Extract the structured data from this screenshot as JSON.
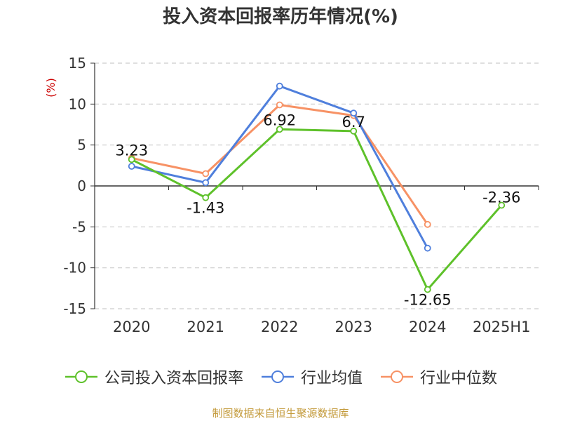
{
  "chart_data": {
    "type": "line",
    "title": "投入资本回报率历年情况(%)",
    "ylabel": "(%)",
    "xlabel": "",
    "categories": [
      "2020",
      "2021",
      "2022",
      "2023",
      "2024",
      "2025H1"
    ],
    "ylim": [
      -15,
      15
    ],
    "yticks": [
      15,
      10,
      5,
      0,
      -5,
      -10,
      -15
    ],
    "grid": true,
    "legend_position": "bottom",
    "series": [
      {
        "name": "公司投入资本回报率",
        "color": "#5ec12a",
        "values": [
          3.23,
          -1.43,
          6.92,
          6.7,
          -12.65,
          -2.36
        ],
        "labels": [
          "3.23",
          "-1.43",
          "6.92",
          "6.7",
          "-12.65",
          "-2.36"
        ]
      },
      {
        "name": "行业均值",
        "color": "#4f7fdc",
        "values": [
          2.4,
          0.4,
          12.2,
          8.9,
          -7.6,
          null
        ]
      },
      {
        "name": "行业中位数",
        "color": "#f79265",
        "values": [
          3.4,
          1.5,
          9.9,
          8.6,
          -4.7,
          null
        ]
      }
    ]
  },
  "source": "制图数据来自恒生聚源数据库"
}
